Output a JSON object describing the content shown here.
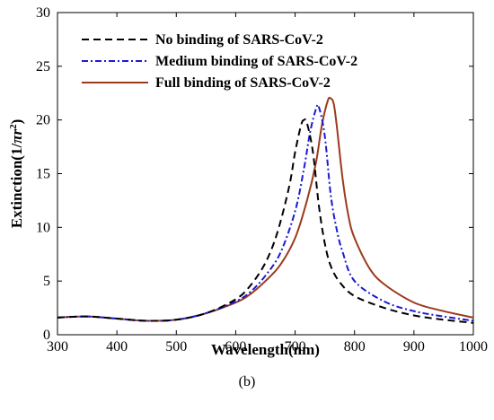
{
  "chart_data": {
    "type": "line",
    "title": "",
    "xlabel": "Wavelength(nm)",
    "ylabel_main": "Extinction(1/",
    "ylabel_pi": "πr",
    "ylabel_sup": "2",
    "ylabel_close": ")",
    "caption": "(b)",
    "xlim": [
      300,
      1000
    ],
    "ylim": [
      0,
      30
    ],
    "xticks": [
      300,
      400,
      500,
      600,
      700,
      800,
      900,
      1000
    ],
    "yticks": [
      0,
      5,
      10,
      15,
      20,
      25,
      30
    ],
    "grid": false,
    "legend_position": "top-left",
    "series": [
      {
        "name": "No binding of SARS-CoV-2",
        "color": "#000000",
        "dash": "8,5",
        "x": [
          300,
          350,
          400,
          450,
          500,
          550,
          600,
          625,
          650,
          670,
          690,
          700,
          710,
          715,
          720,
          730,
          740,
          750,
          760,
          775,
          800,
          850,
          900,
          950,
          1000
        ],
        "y": [
          1.6,
          1.7,
          1.5,
          1.3,
          1.4,
          2.0,
          3.3,
          4.6,
          6.7,
          9.5,
          13.8,
          17.0,
          19.5,
          20.0,
          19.7,
          17.0,
          12.0,
          8.5,
          6.4,
          4.9,
          3.6,
          2.5,
          1.8,
          1.4,
          1.1
        ]
      },
      {
        "name": "Medium binding of SARS-CoV-2",
        "color": "#1a1ad6",
        "dash": "7,3,2,3",
        "x": [
          300,
          350,
          400,
          450,
          500,
          550,
          600,
          625,
          650,
          675,
          700,
          715,
          725,
          735,
          740,
          750,
          760,
          770,
          780,
          800,
          850,
          900,
          950,
          1000
        ],
        "y": [
          1.6,
          1.7,
          1.5,
          1.3,
          1.4,
          2.0,
          3.1,
          4.0,
          5.5,
          7.6,
          11.5,
          15.5,
          18.8,
          21.0,
          21.2,
          18.5,
          13.0,
          9.8,
          7.7,
          5.0,
          3.1,
          2.2,
          1.7,
          1.3
        ]
      },
      {
        "name": "Full binding of SARS-CoV-2",
        "color": "#9b3a1c",
        "dash": "",
        "x": [
          300,
          350,
          400,
          450,
          500,
          550,
          600,
          625,
          650,
          675,
          700,
          720,
          735,
          745,
          755,
          760,
          765,
          770,
          780,
          790,
          800,
          825,
          850,
          900,
          950,
          1000
        ],
        "y": [
          1.6,
          1.7,
          1.5,
          1.3,
          1.4,
          2.0,
          3.0,
          3.8,
          5.0,
          6.5,
          9.0,
          12.5,
          16.0,
          19.5,
          21.8,
          22.0,
          21.5,
          19.5,
          14.5,
          11.0,
          9.0,
          6.2,
          4.7,
          3.0,
          2.2,
          1.6
        ]
      }
    ]
  }
}
